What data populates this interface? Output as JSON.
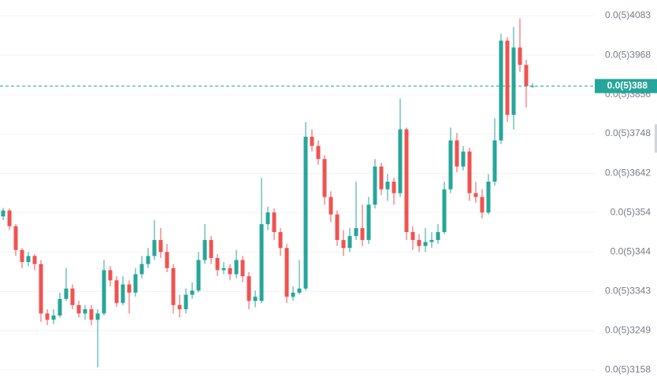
{
  "chart_data": {
    "type": "candlestick",
    "log_scale": true,
    "grid": true,
    "up_color": "#26a69a",
    "down_color": "#ef5350",
    "ylim": [
      3.144e-06,
      4.13e-06
    ],
    "yticks": [
      {
        "value": 4.083e-06,
        "label": "0.0(5)4083"
      },
      {
        "value": 3.968e-06,
        "label": "0.0(5)3968"
      },
      {
        "value": 3.856e-06,
        "label": "0.0(5)3856"
      },
      {
        "value": 3.748e-06,
        "label": "0.0(5)3748"
      },
      {
        "value": 3.642e-06,
        "label": "0.0(5)3642"
      },
      {
        "value": 3.54e-06,
        "label": "0.0(5)354"
      },
      {
        "value": 3.44e-06,
        "label": "0.0(5)344"
      },
      {
        "value": 3.343e-06,
        "label": "0.0(5)3343"
      },
      {
        "value": 3.249e-06,
        "label": "0.0(5)3249"
      },
      {
        "value": 3.158e-06,
        "label": "0.0(5)3158"
      }
    ],
    "last_price": {
      "value": 3.88e-06,
      "label": "0.0(5)388"
    },
    "open": [
      3.53e-06,
      3.545e-06,
      3.505e-06,
      3.445e-06,
      3.415e-06,
      3.43e-06,
      3.41e-06,
      3.29e-06,
      3.275e-06,
      3.285e-06,
      3.325e-06,
      3.35e-06,
      3.31e-06,
      3.29e-06,
      3.3e-06,
      3.275e-06,
      3.29e-06,
      3.395e-06,
      3.37e-06,
      3.315e-06,
      3.36e-06,
      3.34e-06,
      3.385e-06,
      3.41e-06,
      3.43e-06,
      3.47e-06,
      3.44e-06,
      3.4e-06,
      3.31e-06,
      3.3e-06,
      3.335e-06,
      3.345e-06,
      3.42e-06,
      3.47e-06,
      3.425e-06,
      3.395e-06,
      3.4e-06,
      3.385e-06,
      3.42e-06,
      3.38e-06,
      3.32e-06,
      3.32e-06,
      3.51e-06,
      3.54e-06,
      3.49e-06,
      3.45e-06,
      3.33e-06,
      3.34e-06,
      3.35e-06,
      3.74e-06,
      3.715e-06,
      3.68e-06,
      3.58e-06,
      3.535e-06,
      3.47e-06,
      3.45e-06,
      3.48e-06,
      3.5e-06,
      3.47e-06,
      3.56e-06,
      3.66e-06,
      3.6e-06,
      3.62e-06,
      3.59e-06,
      3.76e-06,
      3.49e-06,
      3.47e-06,
      3.455e-06,
      3.465e-06,
      3.47e-06,
      3.49e-06,
      3.6e-06,
      3.73e-06,
      3.66e-06,
      3.7e-06,
      3.59e-06,
      3.58e-06,
      3.54e-06,
      3.62e-06,
      3.73e-06,
      4.01e-06,
      3.8e-06,
      3.99e-06,
      3.94e-06,
      3.88e-06
    ],
    "high": [
      3.552e-06,
      3.55e-06,
      3.51e-06,
      3.45e-06,
      3.44e-06,
      3.435e-06,
      3.42e-06,
      3.3e-06,
      3.3e-06,
      3.34e-06,
      3.4e-06,
      3.36e-06,
      3.32e-06,
      3.31e-06,
      3.31e-06,
      3.3e-06,
      3.42e-06,
      3.405e-06,
      3.38e-06,
      3.38e-06,
      3.37e-06,
      3.4e-06,
      3.43e-06,
      3.45e-06,
      3.52e-06,
      3.5e-06,
      3.46e-06,
      3.41e-06,
      3.335e-06,
      3.35e-06,
      3.365e-06,
      3.44e-06,
      3.51e-06,
      3.48e-06,
      3.435e-06,
      3.415e-06,
      3.41e-06,
      3.445e-06,
      3.43e-06,
      3.39e-06,
      3.345e-06,
      3.63e-06,
      3.555e-06,
      3.55e-06,
      3.5e-06,
      3.46e-06,
      3.355e-06,
      3.42e-06,
      3.78e-06,
      3.76e-06,
      3.73e-06,
      3.69e-06,
      3.595e-06,
      3.545e-06,
      3.495e-06,
      3.5e-06,
      3.62e-06,
      3.56e-06,
      3.58e-06,
      3.68e-06,
      3.67e-06,
      3.64e-06,
      3.63e-06,
      3.845e-06,
      3.765e-06,
      3.505e-06,
      3.485e-06,
      3.5e-06,
      3.49e-06,
      3.51e-06,
      3.62e-06,
      3.765e-06,
      3.75e-06,
      3.715e-06,
      3.71e-06,
      3.62e-06,
      3.6e-06,
      3.64e-06,
      3.79e-06,
      4.03e-06,
      4.02e-06,
      4.05e-06,
      4.075e-06,
      3.955e-06,
      3.888e-06
    ],
    "low": [
      3.52e-06,
      3.495e-06,
      3.43e-06,
      3.4e-06,
      3.405e-06,
      3.395e-06,
      3.27e-06,
      3.262e-06,
      3.265e-06,
      3.28e-06,
      3.32e-06,
      3.3e-06,
      3.28e-06,
      3.275e-06,
      3.262e-06,
      3.164e-06,
      3.285e-06,
      3.355e-06,
      3.305e-06,
      3.31e-06,
      3.29e-06,
      3.33e-06,
      3.375e-06,
      3.4e-06,
      3.42e-06,
      3.425e-06,
      3.39e-06,
      3.29e-06,
      3.28e-06,
      3.29e-06,
      3.325e-06,
      3.34e-06,
      3.41e-06,
      3.41e-06,
      3.38e-06,
      3.385e-06,
      3.37e-06,
      3.375e-06,
      3.365e-06,
      3.3e-06,
      3.305e-06,
      3.315e-06,
      3.495e-06,
      3.47e-06,
      3.43e-06,
      3.315e-06,
      3.32e-06,
      3.335e-06,
      3.345e-06,
      3.7e-06,
      3.665e-06,
      3.56e-06,
      3.515e-06,
      3.455e-06,
      3.43e-06,
      3.44e-06,
      3.47e-06,
      3.455e-06,
      3.46e-06,
      3.55e-06,
      3.585e-06,
      3.57e-06,
      3.56e-06,
      3.58e-06,
      3.47e-06,
      3.445e-06,
      3.44e-06,
      3.44e-06,
      3.45e-06,
      3.46e-06,
      3.485e-06,
      3.59e-06,
      3.645e-06,
      3.65e-06,
      3.57e-06,
      3.565e-06,
      3.525e-06,
      3.535e-06,
      3.61e-06,
      3.72e-06,
      3.78e-06,
      3.76e-06,
      3.92e-06,
      3.82e-06,
      3.875e-06
    ],
    "close": [
      3.545e-06,
      3.505e-06,
      3.445e-06,
      3.415e-06,
      3.43e-06,
      3.41e-06,
      3.29e-06,
      3.275e-06,
      3.285e-06,
      3.325e-06,
      3.35e-06,
      3.31e-06,
      3.29e-06,
      3.3e-06,
      3.275e-06,
      3.29e-06,
      3.395e-06,
      3.37e-06,
      3.315e-06,
      3.36e-06,
      3.34e-06,
      3.385e-06,
      3.41e-06,
      3.43e-06,
      3.47e-06,
      3.44e-06,
      3.4e-06,
      3.31e-06,
      3.3e-06,
      3.335e-06,
      3.345e-06,
      3.42e-06,
      3.47e-06,
      3.425e-06,
      3.395e-06,
      3.4e-06,
      3.385e-06,
      3.42e-06,
      3.38e-06,
      3.32e-06,
      3.33e-06,
      3.51e-06,
      3.54e-06,
      3.49e-06,
      3.45e-06,
      3.33e-06,
      3.34e-06,
      3.35e-06,
      3.74e-06,
      3.715e-06,
      3.68e-06,
      3.58e-06,
      3.535e-06,
      3.47e-06,
      3.45e-06,
      3.48e-06,
      3.5e-06,
      3.47e-06,
      3.56e-06,
      3.66e-06,
      3.6e-06,
      3.62e-06,
      3.59e-06,
      3.76e-06,
      3.49e-06,
      3.47e-06,
      3.455e-06,
      3.465e-06,
      3.47e-06,
      3.49e-06,
      3.6e-06,
      3.73e-06,
      3.66e-06,
      3.7e-06,
      3.59e-06,
      3.58e-06,
      3.54e-06,
      3.62e-06,
      3.73e-06,
      4.01e-06,
      3.8e-06,
      3.99e-06,
      3.94e-06,
      3.88e-06,
      3.88e-06
    ]
  }
}
